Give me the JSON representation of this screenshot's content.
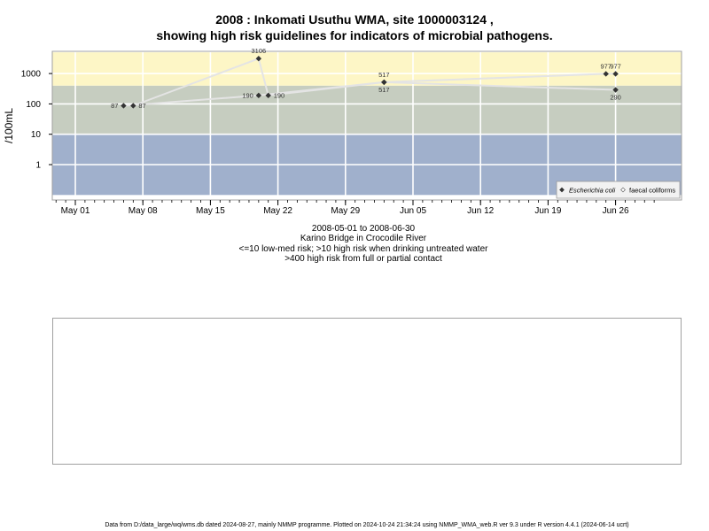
{
  "chart_data": {
    "type": "scatter",
    "title": "2008 : Inkomati Usuthu WMA, site 1000003124 ,",
    "subtitle": "showing high risk guidelines for indicators of microbial pathogens.",
    "ylabel": "/100mL",
    "y_scale": "log10",
    "y_ticks": [
      "1",
      "10",
      "100",
      "1000"
    ],
    "x_ticks": [
      "May 01",
      "May 08",
      "May 15",
      "May 22",
      "May 29",
      "Jun 05",
      "Jun 12",
      "Jun 19",
      "Jun 26"
    ],
    "x_range": [
      "2008-04-29",
      "2008-06-30"
    ],
    "bands": [
      {
        "from": 0.1,
        "to": 10,
        "color": "#a0b0cc",
        "meaning": "<=10 low-med risk"
      },
      {
        "from": 10,
        "to": 400,
        "color": "#c6cdc0",
        "meaning": ">10 high risk when drinking untreated water"
      },
      {
        "from": 400,
        "to": 5000,
        "color": "#fdf6c6",
        "meaning": ">400 high risk from full or partial contact"
      }
    ],
    "series": [
      {
        "name": "Escherichia coli",
        "marker": "diamond",
        "color": "#333333",
        "points": [
          {
            "x": "2008-05-06",
            "y": 87,
            "label": "87"
          },
          {
            "x": "2008-05-20",
            "y": 190,
            "label": "190"
          },
          {
            "x": "2008-06-02",
            "y": 517,
            "label": "517"
          },
          {
            "x": "2008-06-26",
            "y": 290,
            "label": "290"
          }
        ]
      },
      {
        "name": "faecal coliforms",
        "marker": "diamond",
        "color": "#333333",
        "points": [
          {
            "x": "2008-05-07",
            "y": 87,
            "label": "87"
          },
          {
            "x": "2008-05-20",
            "y": 3106,
            "label": "3106"
          },
          {
            "x": "2008-05-21",
            "y": 190,
            "label": "190"
          },
          {
            "x": "2008-06-02",
            "y": 517,
            "label": "517"
          },
          {
            "x": "2008-06-25",
            "y": 977,
            "label": "977"
          },
          {
            "x": "2008-06-26",
            "y": 977,
            "label": "977"
          }
        ]
      }
    ],
    "legend": {
      "placement": "bottom-right",
      "entries": [
        "Escherichia coli",
        "faecal coliforms"
      ]
    },
    "grid": true
  },
  "below": {
    "date_range": "2008-05-01 to 2008-06-30",
    "site_name": "Karino Bridge in Crocodile River",
    "risk_line1": "<=10 low-med risk; >10 high risk when drinking untreated water",
    "risk_line2": ">400 high risk from full or partial contact"
  },
  "footer": "Data from D:/data_large/wq/wms.db dated 2024-08-27, mainly NMMP programme. Plotted on 2024-10-24 21:34:24 using NMMP_WMA_web.R ver 9.3 under R version 4.4.1 (2024-06-14 ucrt)"
}
